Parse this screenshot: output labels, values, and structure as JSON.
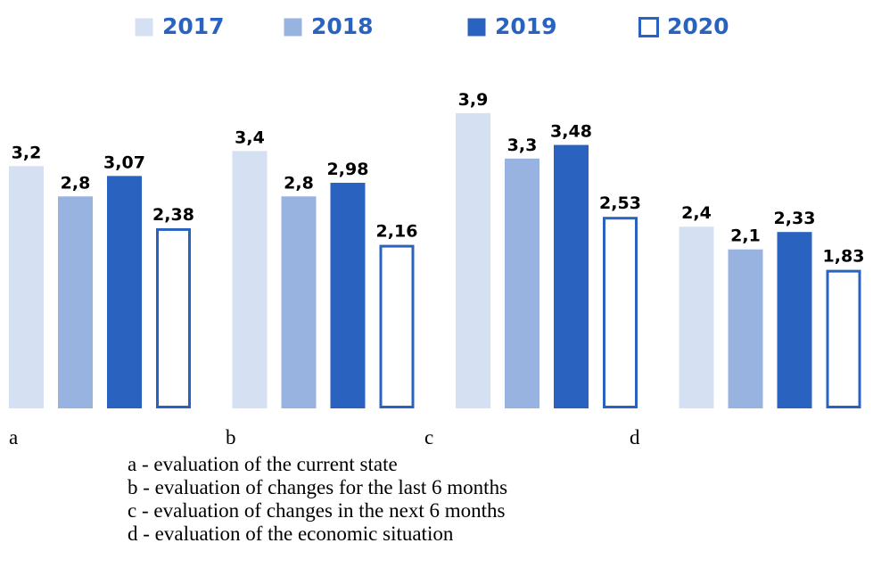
{
  "chart_data": {
    "type": "bar",
    "categories": [
      "a",
      "b",
      "c",
      "d"
    ],
    "series": [
      {
        "name": "2017",
        "color": "#d5e0f2",
        "values": [
          3.2,
          3.4,
          3.9,
          2.4
        ],
        "value_labels": [
          "3,2",
          "3,4",
          "3,9",
          "2,4"
        ]
      },
      {
        "name": "2018",
        "color": "#98b3e0",
        "values": [
          2.8,
          2.8,
          3.3,
          2.1
        ],
        "value_labels": [
          "2,8",
          "2,8",
          "3,3",
          "2,1"
        ]
      },
      {
        "name": "2019",
        "color": "#2a63bf",
        "values": [
          3.07,
          2.98,
          3.48,
          2.33
        ],
        "value_labels": [
          "3,07",
          "2,98",
          "3,48",
          "2,33"
        ]
      },
      {
        "name": "2020",
        "color": "#2a63bf",
        "fill": "#ffffff",
        "values": [
          2.38,
          2.16,
          2.53,
          1.83
        ],
        "value_labels": [
          "2,38",
          "2,16",
          "2,53",
          "1,83"
        ]
      }
    ],
    "notes": [
      "a - evaluation of the current state",
      "b - evaluation of changes for the last 6 months",
      "c - evaluation of changes in the next 6 months",
      "d - evaluation of the economic situation"
    ]
  }
}
